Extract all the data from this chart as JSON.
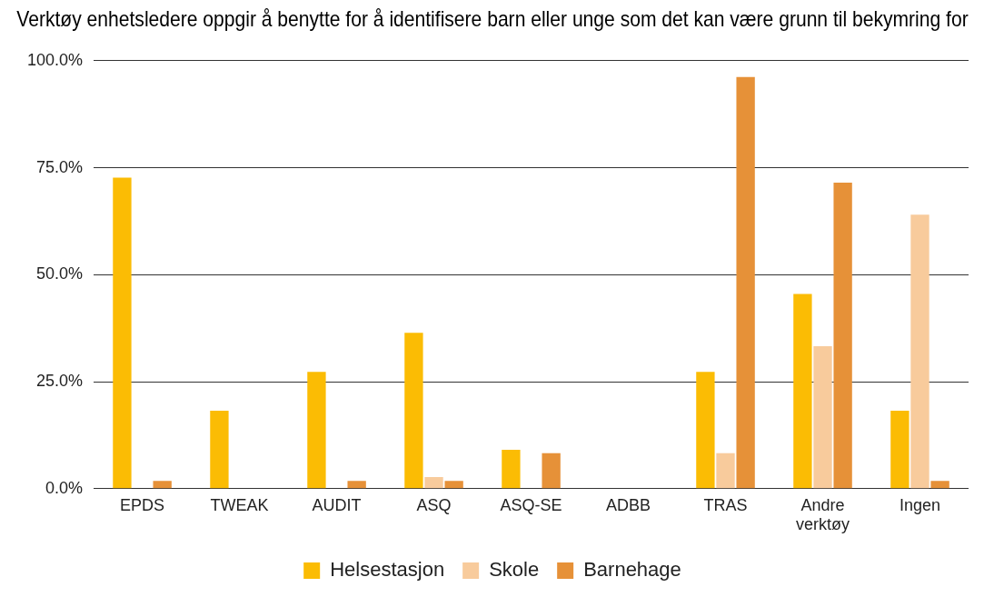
{
  "chart_data": {
    "type": "bar",
    "title": "Verktøy enhetsledere oppgir å benytte for å identifisere barn eller unge som det kan være grunn til bekymring for",
    "categories": [
      "EPDS",
      "TWEAK",
      "AUDIT",
      "ASQ",
      "ASQ-SE",
      "ADBB",
      "TRAS",
      "Andre verktøy",
      "Ingen"
    ],
    "series": [
      {
        "name": "Helsestasjon",
        "color": "#fbbc04",
        "values": [
          72.7,
          18.2,
          27.3,
          36.4,
          9.1,
          0,
          27.3,
          45.5,
          18.2
        ]
      },
      {
        "name": "Skole",
        "color": "#f8cb9c",
        "values": [
          0,
          0,
          0,
          2.7,
          0,
          0,
          8.3,
          33.3,
          64.0
        ]
      },
      {
        "name": "Barnehage",
        "color": "#e69138",
        "values": [
          1.8,
          0,
          1.8,
          1.8,
          8.3,
          0,
          96.2,
          71.5,
          1.8
        ]
      }
    ],
    "ylim": [
      0,
      100
    ],
    "yticks": [
      {
        "value": 0,
        "label": "0.0%"
      },
      {
        "value": 25,
        "label": "25.0%"
      },
      {
        "value": 50,
        "label": "50.0%"
      },
      {
        "value": 75,
        "label": "75.0%"
      },
      {
        "value": 100,
        "label": "100.0%"
      }
    ],
    "grid": "y",
    "legend": "bottom"
  }
}
